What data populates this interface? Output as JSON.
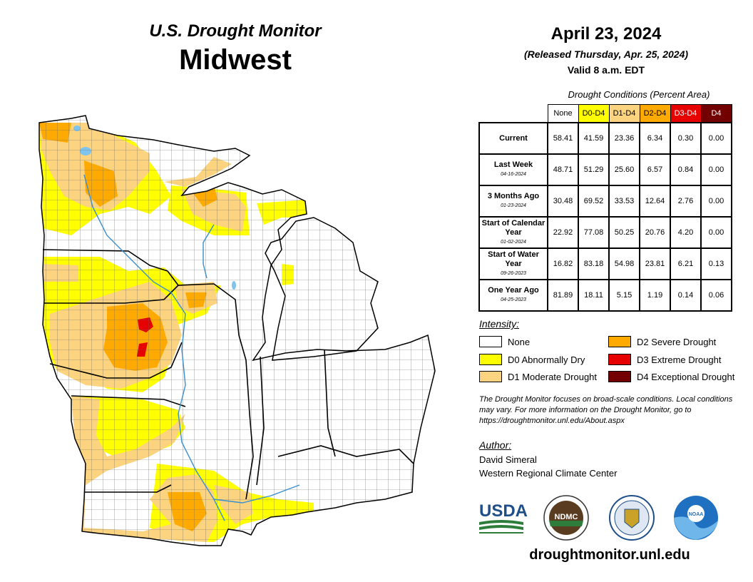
{
  "header": {
    "title_top": "U.S. Drought Monitor",
    "region": "Midwest",
    "date": "April 23, 2024",
    "released": "(Released Thursday, Apr. 25, 2024)",
    "valid": "Valid 8 a.m. EDT"
  },
  "table": {
    "title": "Drought Conditions (Percent Area)",
    "columns": [
      "None",
      "D0-D4",
      "D1-D4",
      "D2-D4",
      "D3-D4",
      "D4"
    ],
    "column_colors": [
      "#ffffff",
      "#ffff00",
      "#fcd37f",
      "#ffaa00",
      "#e60000",
      "#730000"
    ],
    "rows": [
      {
        "label": "Current",
        "date": "",
        "values": [
          "58.41",
          "41.59",
          "23.36",
          "6.34",
          "0.30",
          "0.00"
        ]
      },
      {
        "label": "Last Week",
        "date": "04-16-2024",
        "values": [
          "48.71",
          "51.29",
          "25.60",
          "6.57",
          "0.84",
          "0.00"
        ]
      },
      {
        "label": "3 Months Ago",
        "date": "01-23-2024",
        "values": [
          "30.48",
          "69.52",
          "33.53",
          "12.64",
          "2.76",
          "0.00"
        ]
      },
      {
        "label": "Start of Calendar Year",
        "date": "01-02-2024",
        "values": [
          "22.92",
          "77.08",
          "50.25",
          "20.76",
          "4.20",
          "0.00"
        ]
      },
      {
        "label": "Start of Water Year",
        "date": "09-26-2023",
        "values": [
          "16.82",
          "83.18",
          "54.98",
          "23.81",
          "6.21",
          "0.13"
        ]
      },
      {
        "label": "One Year Ago",
        "date": "04-25-2023",
        "values": [
          "81.89",
          "18.11",
          "5.15",
          "1.19",
          "0.14",
          "0.06"
        ]
      }
    ]
  },
  "legend": {
    "title": "Intensity:",
    "items": [
      {
        "label": "None",
        "color": "#ffffff"
      },
      {
        "label": "D0 Abnormally Dry",
        "color": "#ffff00"
      },
      {
        "label": "D1 Moderate Drought",
        "color": "#fcd37f"
      },
      {
        "label": "D2 Severe Drought",
        "color": "#ffaa00"
      },
      {
        "label": "D3 Extreme Drought",
        "color": "#e60000"
      },
      {
        "label": "D4 Exceptional Drought",
        "color": "#730000"
      }
    ]
  },
  "note": "The Drought Monitor focuses on broad-scale conditions. Local conditions may vary. For more information on the Drought Monitor, go to https://droughtmonitor.unl.edu/About.aspx",
  "author": {
    "title": "Author:",
    "name": "David Simeral",
    "org": "Western Regional Climate Center"
  },
  "logos": {
    "usda": "USDA",
    "ndmc": "NDMC",
    "noaa": "NOAA"
  },
  "url": "droughtmonitor.unl.edu",
  "colors": {
    "water": "#7fc4ec",
    "river": "#3a8fd0",
    "county_line": "#555555"
  }
}
